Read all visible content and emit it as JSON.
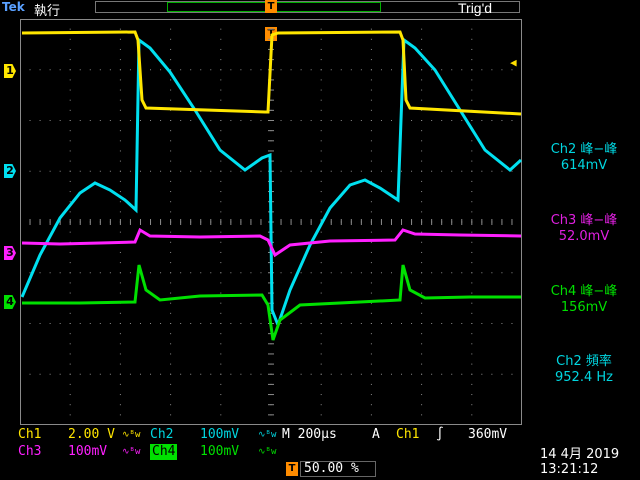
{
  "header": {
    "brand_prefix": "Tek",
    "brand_mode": "執行",
    "trigger_status": "Trig'd",
    "trigger_pos_glyph": "T"
  },
  "channels": {
    "ch1": {
      "marker": "1",
      "color": "#ffe600"
    },
    "ch2": {
      "marker": "2",
      "color": "#00e0f0"
    },
    "ch3": {
      "marker": "3",
      "color": "#ff20ff"
    },
    "ch4": {
      "marker": "4",
      "color": "#00e000"
    }
  },
  "measurements": [
    {
      "title": "Ch2 峰−峰",
      "value": "614mV",
      "color": "#00d6e0"
    },
    {
      "title": "Ch3 峰−峰",
      "value": "52.0mV",
      "color": "#e020e0"
    },
    {
      "title": "Ch4 峰−峰",
      "value": "156mV",
      "color": "#00e000"
    },
    {
      "title": "Ch2 頻率",
      "value": "952.4 Hz",
      "color": "#00d6e0"
    }
  ],
  "settings": {
    "ch1_label": "Ch1",
    "ch1_scale": "2.00 V",
    "ch2_label": "Ch2",
    "ch2_scale": "100mV",
    "ch3_label": "Ch3",
    "ch3_scale": "100mV",
    "ch4_label": "Ch4",
    "ch4_scale": "100mV",
    "bw_glyph": "∿ᴮw",
    "timebase": "M 200µs",
    "trigger_mode": "A",
    "trigger_source": "Ch1",
    "trigger_slope": "∫",
    "trigger_level": "360mV",
    "trigger_position": "50.00 %"
  },
  "datetime": {
    "date": "14 4月  2019",
    "time": "13:21:12"
  },
  "graticule": {
    "divisions_x": 10,
    "divisions_y": 8,
    "grid_color": "#8a8a8a"
  }
}
